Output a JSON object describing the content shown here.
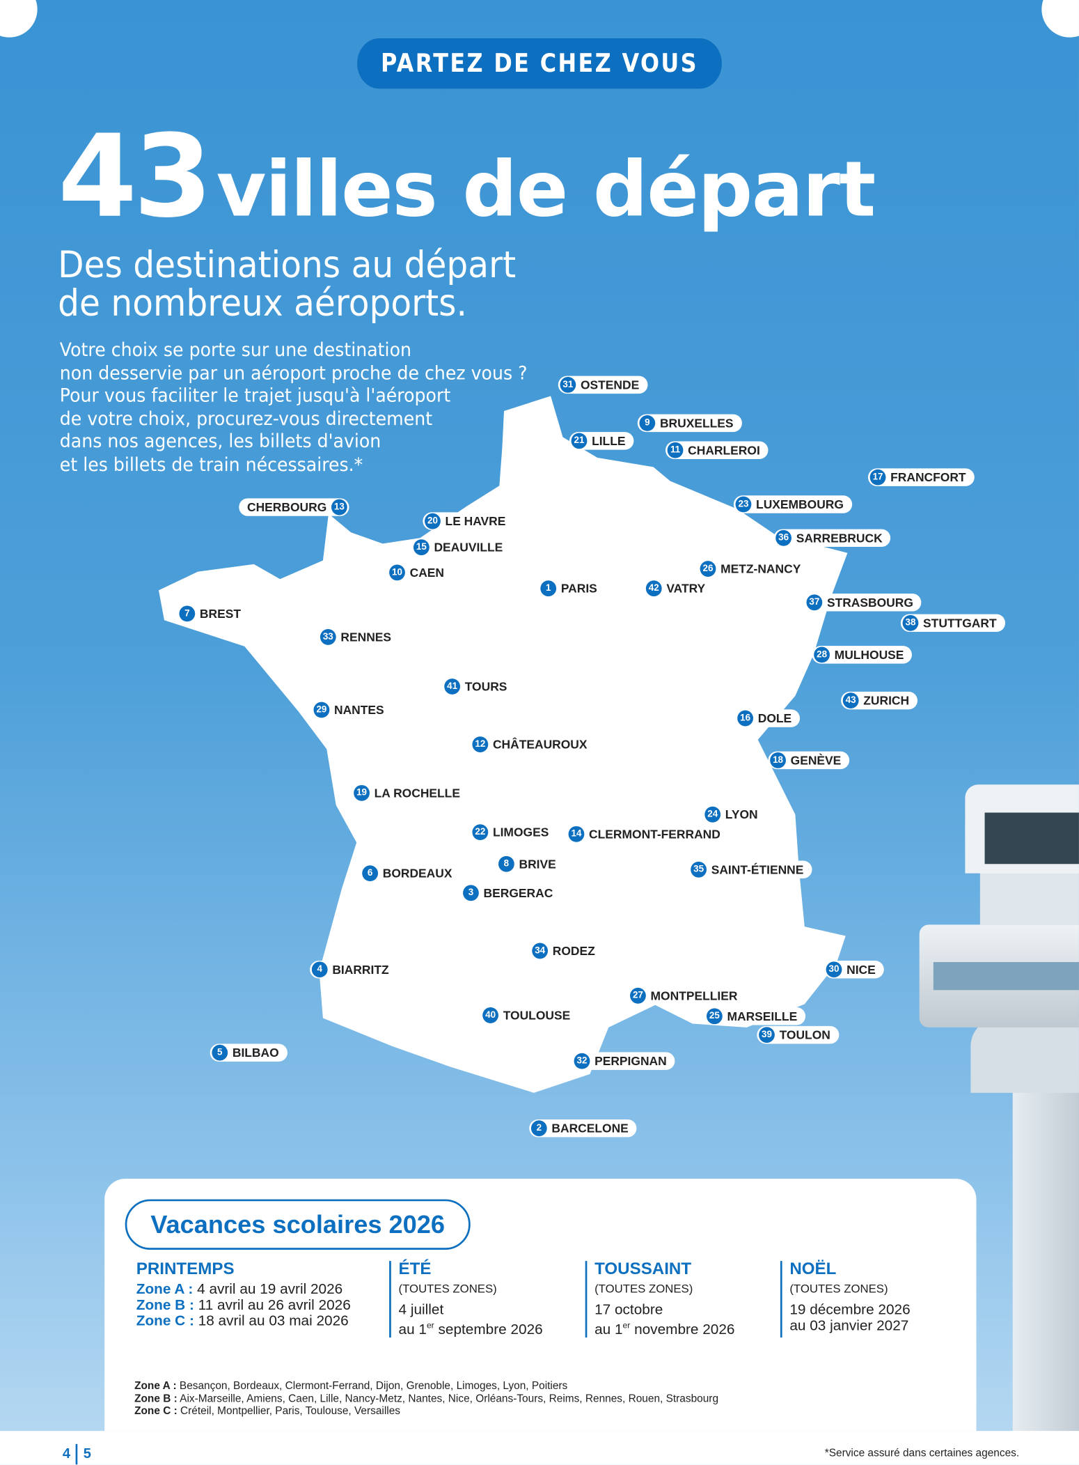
{
  "header": {
    "pill": "PARTEZ DE CHEZ VOUS",
    "count": "43",
    "title": "villes de départ",
    "subtitle_line1": "Des destinations au départ",
    "subtitle_line2": "de nombreux aéroports.",
    "intro": "Votre choix se porte sur une destination\nnon desservie par un aéroport proche de chez vous ?\nPour vous faciliter le trajet jusqu'à l'aéroport\nde votre choix, procurez-vous directement\ndans nos agences, les billets d'avion\net les billets de train nécessaires.*"
  },
  "colors": {
    "brand": "#0d6fbf",
    "sky": "#3a93d3"
  },
  "cities": [
    {
      "n": "31",
      "name": "OSTENDE"
    },
    {
      "n": "9",
      "name": "BRUXELLES"
    },
    {
      "n": "21",
      "name": "LILLE"
    },
    {
      "n": "11",
      "name": "CHARLEROI"
    },
    {
      "n": "17",
      "name": "FRANCFORT"
    },
    {
      "n": "13",
      "name": "CHERBOURG"
    },
    {
      "n": "20",
      "name": "LE HAVRE"
    },
    {
      "n": "15",
      "name": "DEAUVILLE"
    },
    {
      "n": "10",
      "name": "CAEN"
    },
    {
      "n": "23",
      "name": "LUXEMBOURG"
    },
    {
      "n": "36",
      "name": "SARREBRUCK"
    },
    {
      "n": "26",
      "name": "METZ-NANCY"
    },
    {
      "n": "1",
      "name": "PARIS"
    },
    {
      "n": "42",
      "name": "VATRY"
    },
    {
      "n": "7",
      "name": "BREST"
    },
    {
      "n": "37",
      "name": "STRASBOURG"
    },
    {
      "n": "38",
      "name": "STUTTGART"
    },
    {
      "n": "33",
      "name": "RENNES"
    },
    {
      "n": "28",
      "name": "MULHOUSE"
    },
    {
      "n": "41",
      "name": "TOURS"
    },
    {
      "n": "43",
      "name": "ZURICH"
    },
    {
      "n": "29",
      "name": "NANTES"
    },
    {
      "n": "16",
      "name": "DOLE"
    },
    {
      "n": "12",
      "name": "CHÂTEAUROUX"
    },
    {
      "n": "18",
      "name": "GENÈVE"
    },
    {
      "n": "19",
      "name": "LA ROCHELLE"
    },
    {
      "n": "24",
      "name": "LYON"
    },
    {
      "n": "22",
      "name": "LIMOGES"
    },
    {
      "n": "14",
      "name": "CLERMONT-FERRAND"
    },
    {
      "n": "8",
      "name": "BRIVE"
    },
    {
      "n": "6",
      "name": "BORDEAUX"
    },
    {
      "n": "35",
      "name": "SAINT-ÉTIENNE"
    },
    {
      "n": "3",
      "name": "BERGERAC"
    },
    {
      "n": "34",
      "name": "RODEZ"
    },
    {
      "n": "4",
      "name": "BIARRITZ"
    },
    {
      "n": "30",
      "name": "NICE"
    },
    {
      "n": "27",
      "name": "MONTPELLIER"
    },
    {
      "n": "40",
      "name": "TOULOUSE"
    },
    {
      "n": "25",
      "name": "MARSEILLE"
    },
    {
      "n": "39",
      "name": "TOULON"
    },
    {
      "n": "5",
      "name": "BILBAO"
    },
    {
      "n": "32",
      "name": "PERPIGNAN"
    },
    {
      "n": "2",
      "name": "BARCELONE"
    }
  ],
  "vacances": {
    "title": "Vacances scolaires 2026",
    "printemps": {
      "title": "PRINTEMPS",
      "a_label": "Zone A :",
      "a": " 4 avril au 19 avril 2026",
      "b_label": "Zone B :",
      "b": " 11 avril au 26 avril 2026",
      "c_label": "Zone C :",
      "c": " 18 avril au 03 mai 2026"
    },
    "ete": {
      "title": "ÉTÉ",
      "zones": "(TOUTES ZONES)",
      "l1": "4 juillet",
      "l2a": "au 1",
      "sup": "er",
      "l2b": " septembre 2026"
    },
    "toussaint": {
      "title": "TOUSSAINT",
      "zones": "(TOUTES ZONES)",
      "l1": "17 octobre",
      "l2a": "au 1",
      "sup": "er",
      "l2b": " novembre 2026"
    },
    "noel": {
      "title": "NOËL",
      "zones": "(TOUTES ZONES)",
      "l1": "19 décembre 2026",
      "l2": "au 03 janvier 2027"
    },
    "zone_a_label": "Zone A :",
    "zone_a": " Besançon, Bordeaux, Clermont-Ferrand, Dijon, Grenoble, Limoges, Lyon, Poitiers",
    "zone_b_label": "Zone B :",
    "zone_b": " Aix-Marseille, Amiens, Caen, Lille, Nancy-Metz, Nantes, Nice, Orléans-Tours, Reims, Rennes, Rouen, Strasbourg",
    "zone_c_label": "Zone C :",
    "zone_c": " Créteil, Montpellier, Paris, Toulouse, Versailles"
  },
  "footer": {
    "page_left": "4",
    "page_right": "5",
    "note": "*Service assuré dans certaines agences."
  }
}
